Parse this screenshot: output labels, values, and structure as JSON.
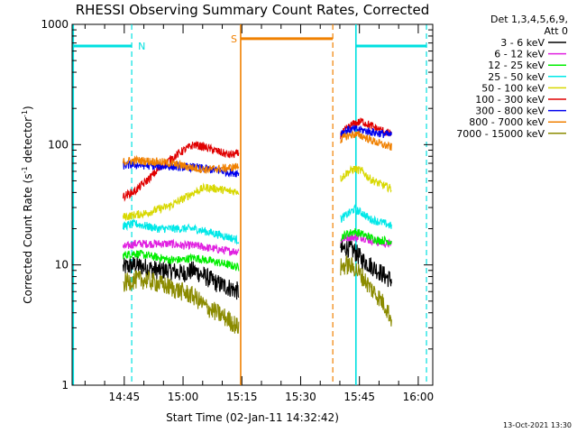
{
  "chart_data": {
    "type": "line",
    "title": "RHESSI Observing Summary Count Rates, Corrected",
    "xlabel": "Start Time (02-Jan-11 14:32:42)",
    "ylabel_main": "Corrected Count Rate (s",
    "ylabel_sup1": "-1",
    "ylabel_mid": " detector",
    "ylabel_sup2": "-1",
    "ylabel_end": ")",
    "y_scale": "log",
    "ylim": [
      1,
      1000
    ],
    "xlim_minutes": [
      14.0,
      106.0
    ],
    "x_ticks": [
      {
        "m": 27.3,
        "label": "14:45"
      },
      {
        "m": 42.3,
        "label": "15:00"
      },
      {
        "m": 57.3,
        "label": "15:15"
      },
      {
        "m": 72.3,
        "label": "15:30"
      },
      {
        "m": 87.3,
        "label": "15:45"
      },
      {
        "m": 102.3,
        "label": "16:00"
      }
    ],
    "y_ticks": [
      {
        "v": 1,
        "label": "1"
      },
      {
        "v": 10,
        "label": "10"
      },
      {
        "v": 100,
        "label": "100"
      },
      {
        "v": 1000,
        "label": "1000"
      }
    ],
    "legend": {
      "placement": "right",
      "header1": "Det 1,3,4,5,6,9,",
      "header2": "Att 0"
    },
    "series": [
      {
        "name": "3 - 6 keV",
        "color": "#000000",
        "seg1": [
          [
            27,
            9.5
          ],
          [
            30,
            10
          ],
          [
            33,
            9.5
          ],
          [
            36,
            9
          ],
          [
            39,
            9
          ],
          [
            42,
            8.5
          ],
          [
            45,
            9
          ],
          [
            48,
            8
          ],
          [
            51,
            7
          ],
          [
            54,
            6.5
          ],
          [
            56.5,
            6
          ]
        ],
        "seg2": [
          [
            82.5,
            13
          ],
          [
            84,
            14
          ],
          [
            86,
            13
          ],
          [
            88,
            11
          ],
          [
            90,
            10
          ],
          [
            92,
            9
          ],
          [
            94,
            8
          ],
          [
            95.5,
            7.5
          ]
        ]
      },
      {
        "name": "6 - 12 keV",
        "color": "#e020e0",
        "seg1": [
          [
            27,
            14
          ],
          [
            30,
            15
          ],
          [
            33,
            15
          ],
          [
            36,
            15
          ],
          [
            39,
            15
          ],
          [
            42,
            14.5
          ],
          [
            45,
            14.5
          ],
          [
            48,
            14
          ],
          [
            51,
            13.5
          ],
          [
            54,
            13
          ],
          [
            56.5,
            13
          ]
        ],
        "seg2": [
          [
            82.5,
            16
          ],
          [
            84,
            17
          ],
          [
            86,
            17
          ],
          [
            88,
            17
          ],
          [
            90,
            16
          ],
          [
            92,
            15.5
          ],
          [
            94,
            15
          ],
          [
            95.5,
            15
          ]
        ]
      },
      {
        "name": "12 - 25 keV",
        "color": "#00ee00",
        "seg1": [
          [
            27,
            12
          ],
          [
            30,
            12.5
          ],
          [
            33,
            12
          ],
          [
            36,
            11.5
          ],
          [
            39,
            11
          ],
          [
            42,
            11
          ],
          [
            45,
            11.5
          ],
          [
            48,
            11
          ],
          [
            51,
            10.5
          ],
          [
            54,
            10
          ],
          [
            56.5,
            9.5
          ]
        ],
        "seg2": [
          [
            82.5,
            17
          ],
          [
            84,
            18
          ],
          [
            86,
            19
          ],
          [
            88,
            18
          ],
          [
            90,
            17
          ],
          [
            92,
            16
          ],
          [
            94,
            16
          ],
          [
            95.5,
            15.5
          ]
        ]
      },
      {
        "name": "25 - 50 keV",
        "color": "#00e8e8",
        "seg1": [
          [
            27,
            21
          ],
          [
            30,
            22
          ],
          [
            33,
            21
          ],
          [
            36,
            20
          ],
          [
            39,
            20
          ],
          [
            42,
            20
          ],
          [
            45,
            20
          ],
          [
            48,
            19
          ],
          [
            51,
            18
          ],
          [
            54,
            17
          ],
          [
            56.5,
            16
          ]
        ],
        "seg2": [
          [
            82.5,
            24
          ],
          [
            84,
            26
          ],
          [
            86,
            29
          ],
          [
            88,
            27
          ],
          [
            90,
            24
          ],
          [
            92,
            23
          ],
          [
            94,
            22
          ],
          [
            95.5,
            21
          ]
        ]
      },
      {
        "name": "50 - 100 keV",
        "color": "#d8d800",
        "seg1": [
          [
            27,
            25
          ],
          [
            30,
            26
          ],
          [
            33,
            27
          ],
          [
            36,
            29
          ],
          [
            39,
            31
          ],
          [
            42,
            35
          ],
          [
            45,
            40
          ],
          [
            48,
            44
          ],
          [
            51,
            43
          ],
          [
            54,
            41
          ],
          [
            56.5,
            41
          ]
        ],
        "seg2": [
          [
            82.5,
            52
          ],
          [
            84,
            58
          ],
          [
            86,
            63
          ],
          [
            88,
            60
          ],
          [
            90,
            52
          ],
          [
            92,
            48
          ],
          [
            94,
            45
          ],
          [
            95.5,
            43
          ]
        ]
      },
      {
        "name": "100 - 300 keV",
        "color": "#e00000",
        "seg1": [
          [
            27,
            37
          ],
          [
            30,
            41
          ],
          [
            33,
            50
          ],
          [
            36,
            62
          ],
          [
            39,
            75
          ],
          [
            42,
            88
          ],
          [
            45,
            100
          ],
          [
            48,
            95
          ],
          [
            51,
            88
          ],
          [
            54,
            82
          ],
          [
            56.5,
            84
          ]
        ],
        "seg2": [
          [
            82.5,
            120
          ],
          [
            84,
            135
          ],
          [
            86,
            150
          ],
          [
            88,
            156
          ],
          [
            90,
            145
          ],
          [
            92,
            135
          ],
          [
            94,
            127
          ],
          [
            95.5,
            122
          ]
        ]
      },
      {
        "name": "300 - 800 keV",
        "color": "#0000ee",
        "seg1": [
          [
            27,
            67
          ],
          [
            30,
            68
          ],
          [
            33,
            67
          ],
          [
            36,
            66
          ],
          [
            39,
            66
          ],
          [
            42,
            65
          ],
          [
            45,
            65
          ],
          [
            48,
            63
          ],
          [
            51,
            61
          ],
          [
            54,
            59
          ],
          [
            56.5,
            58
          ]
        ],
        "seg2": [
          [
            82.5,
            125
          ],
          [
            84,
            132
          ],
          [
            86,
            134
          ],
          [
            88,
            132
          ],
          [
            90,
            128
          ],
          [
            92,
            125
          ],
          [
            94,
            122
          ],
          [
            95.5,
            120
          ]
        ]
      },
      {
        "name": "800 - 7000 keV",
        "color": "#f08000",
        "seg1": [
          [
            27,
            72
          ],
          [
            30,
            74
          ],
          [
            33,
            73
          ],
          [
            36,
            72
          ],
          [
            39,
            70
          ],
          [
            42,
            67
          ],
          [
            45,
            64
          ],
          [
            48,
            62
          ],
          [
            51,
            63
          ],
          [
            54,
            64
          ],
          [
            56.5,
            66
          ]
        ],
        "seg2": [
          [
            82.5,
            110
          ],
          [
            84,
            118
          ],
          [
            86,
            122
          ],
          [
            88,
            118
          ],
          [
            90,
            110
          ],
          [
            92,
            103
          ],
          [
            94,
            98
          ],
          [
            95.5,
            95
          ]
        ]
      },
      {
        "name": "7000 - 15000 keV",
        "color": "#8b8b00",
        "seg1": [
          [
            27,
            7
          ],
          [
            30,
            7.5
          ],
          [
            33,
            7.5
          ],
          [
            36,
            7
          ],
          [
            39,
            6.5
          ],
          [
            42,
            6
          ],
          [
            45,
            5.5
          ],
          [
            48,
            4.5
          ],
          [
            51,
            4
          ],
          [
            54,
            3.5
          ],
          [
            56.5,
            3
          ]
        ],
        "seg2": [
          [
            82.5,
            9.5
          ],
          [
            84,
            10
          ],
          [
            86,
            9.5
          ],
          [
            88,
            8
          ],
          [
            90,
            6.5
          ],
          [
            92,
            5.5
          ],
          [
            94,
            4.5
          ],
          [
            95.5,
            3.5
          ]
        ]
      }
    ],
    "flags": [
      {
        "label": "N",
        "color": "#00e0e0",
        "level": 660
      },
      {
        "label": "S",
        "color": "#f08000",
        "level": 760
      }
    ],
    "timestamp": "13-Oct-2021 13:30"
  }
}
